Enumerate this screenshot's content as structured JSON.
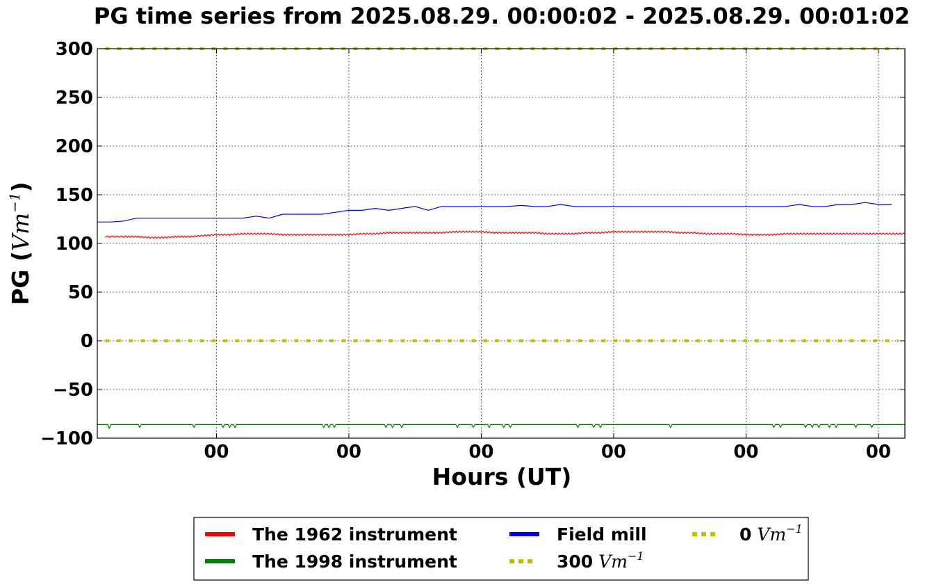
{
  "chart_data": {
    "type": "line",
    "title": "PG time series from 2025.08.29. 00:00:02 - 2025.08.29. 00:01:02",
    "xlabel": "Hours (UT)",
    "ylabel": "PG (Vm⁻¹)",
    "ylabel_prefix": "PG (",
    "ylabel_unit": "Vm",
    "ylabel_exp": "−1",
    "ylabel_suffix": ")",
    "xlim": [
      0,
      61
    ],
    "ylim": [
      -100,
      300
    ],
    "yticks": [
      300,
      250,
      200,
      150,
      100,
      50,
      0,
      -50,
      -100
    ],
    "ytick_labels": [
      "300",
      "250",
      "200",
      "150",
      "100",
      "50",
      "0",
      "−50",
      "−100"
    ],
    "xticks": [
      9,
      19,
      29,
      39,
      49,
      59
    ],
    "xtick_labels": [
      "00",
      "00",
      "00",
      "00",
      "00",
      "00"
    ],
    "grid": true,
    "legend_position": "bottom-center",
    "series": [
      {
        "name": "The 1962 instrument",
        "color": "#ff0000",
        "style": "solid",
        "x": [
          0.6,
          2,
          3,
          4,
          5,
          6,
          7,
          8,
          9,
          10,
          11,
          12,
          13,
          14,
          15,
          16,
          17,
          18,
          19,
          20,
          21,
          22,
          23,
          24,
          25,
          26,
          27,
          28,
          29,
          30,
          31,
          32,
          33,
          34,
          35,
          36,
          37,
          38,
          39,
          40,
          41,
          42,
          43,
          44,
          45,
          46,
          47,
          48,
          49,
          50,
          51,
          52,
          53,
          54,
          55,
          56,
          57,
          58,
          59,
          60,
          61
        ],
        "values": [
          107,
          107,
          107,
          106,
          106,
          107,
          107,
          108,
          109,
          109,
          110,
          110,
          110,
          109,
          109,
          109,
          109,
          109,
          109,
          110,
          110,
          111,
          111,
          111,
          111,
          111,
          112,
          112,
          112,
          111,
          111,
          111,
          111,
          110,
          110,
          110,
          111,
          111,
          112,
          112,
          112,
          112,
          112,
          111,
          111,
          110,
          110,
          110,
          109,
          109,
          109,
          110,
          110,
          110,
          110,
          110,
          110,
          110,
          110,
          110,
          110
        ]
      },
      {
        "name": "The 1998 instrument",
        "color": "#008000",
        "style": "solid",
        "baseline": -86,
        "x": [
          0,
          61
        ],
        "values": [
          -86,
          -86
        ],
        "dips": [
          {
            "x": 0.9,
            "y": -90
          },
          {
            "x": 3.2,
            "y": -89
          },
          {
            "x": 7.3,
            "y": -89
          },
          {
            "x": 9.5,
            "y": -89
          },
          {
            "x": 10.0,
            "y": -89
          },
          {
            "x": 10.4,
            "y": -89
          },
          {
            "x": 17.1,
            "y": -89
          },
          {
            "x": 17.5,
            "y": -89
          },
          {
            "x": 17.9,
            "y": -89
          },
          {
            "x": 21.8,
            "y": -89
          },
          {
            "x": 22.3,
            "y": -89
          },
          {
            "x": 23.0,
            "y": -89
          },
          {
            "x": 27.2,
            "y": -89
          },
          {
            "x": 28.4,
            "y": -89
          },
          {
            "x": 29.6,
            "y": -89
          },
          {
            "x": 30.7,
            "y": -89
          },
          {
            "x": 31.2,
            "y": -89
          },
          {
            "x": 36.3,
            "y": -89
          },
          {
            "x": 37.5,
            "y": -89
          },
          {
            "x": 38.0,
            "y": -89
          },
          {
            "x": 43.3,
            "y": -89
          },
          {
            "x": 51.1,
            "y": -89
          },
          {
            "x": 51.6,
            "y": -89
          },
          {
            "x": 53.5,
            "y": -89
          },
          {
            "x": 54.0,
            "y": -89
          },
          {
            "x": 54.5,
            "y": -89
          },
          {
            "x": 55.3,
            "y": -89
          },
          {
            "x": 55.8,
            "y": -89
          },
          {
            "x": 57.3,
            "y": -89
          },
          {
            "x": 58.5,
            "y": -89
          }
        ]
      },
      {
        "name": "Field mill",
        "color": "#0000ff",
        "style": "solid",
        "x": [
          0,
          1,
          2,
          3,
          4,
          5,
          6,
          7,
          8,
          9,
          10,
          11,
          12,
          13,
          14,
          15,
          16,
          17,
          18,
          19,
          20,
          21,
          22,
          23,
          24,
          25,
          26,
          27,
          28,
          29,
          30,
          31,
          32,
          33,
          34,
          35,
          36,
          37,
          38,
          39,
          40,
          41,
          42,
          43,
          44,
          45,
          46,
          47,
          48,
          49,
          50,
          51,
          52,
          53,
          54,
          55,
          56,
          57,
          58,
          59,
          60
        ],
        "values": [
          122,
          122,
          123,
          126,
          126,
          126,
          126,
          126,
          126,
          126,
          126,
          126,
          128,
          126,
          130,
          130,
          130,
          130,
          132,
          134,
          134,
          136,
          134,
          136,
          138,
          134,
          138,
          138,
          138,
          138,
          138,
          138,
          139,
          138,
          138,
          140,
          138,
          138,
          138,
          138,
          138,
          138,
          138,
          138,
          138,
          138,
          138,
          138,
          138,
          138,
          138,
          138,
          138,
          140,
          138,
          138,
          140,
          140,
          142,
          140,
          140
        ]
      },
      {
        "name": "300 Vm⁻¹",
        "label_value": "300",
        "color": "#bfbf00",
        "style": "dotted",
        "x": [
          0.6,
          60.5
        ],
        "values": [
          300,
          300
        ]
      },
      {
        "name": "0 Vm⁻¹",
        "label_value": "0",
        "color": "#bfbf00",
        "style": "dotted",
        "x": [
          0.6,
          60.5
        ],
        "values": [
          0,
          0
        ]
      }
    ],
    "legend": {
      "unit": "Vm",
      "exp": "−1",
      "entries": [
        {
          "label": "The 1962 instrument",
          "color": "#ff0000",
          "style": "solid"
        },
        {
          "label": "The 1998 instrument",
          "color": "#008000",
          "style": "solid"
        },
        {
          "label": "Field mill",
          "color": "#0000ff",
          "style": "solid"
        },
        {
          "label": "300",
          "color": "#bfbf00",
          "style": "dotted",
          "has_unit": true
        },
        {
          "label": "0",
          "color": "#bfbf00",
          "style": "dotted",
          "has_unit": true
        }
      ]
    }
  }
}
